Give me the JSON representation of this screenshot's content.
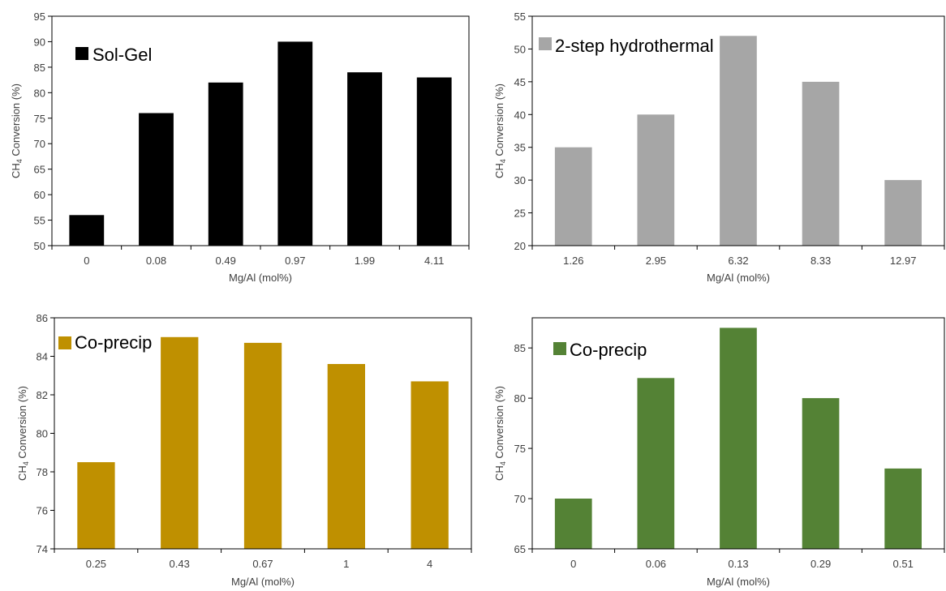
{
  "chart_data": [
    {
      "type": "bar",
      "legend": "Sol-Gel",
      "legend_position": "top-left",
      "color": "#000000",
      "categories": [
        "0",
        "0.08",
        "0.49",
        "0.97",
        "1.99",
        "4.11"
      ],
      "values": [
        56,
        76,
        82,
        90,
        84,
        83
      ],
      "xlabel": "Mg/Al (mol%)",
      "ylabel_main": "CH",
      "ylabel_sub": "4",
      "ylabel_rest": " Conversion (%)",
      "ylim": [
        50,
        95
      ],
      "yticks": [
        "50",
        "55",
        "60",
        "65",
        "70",
        "75",
        "80",
        "85",
        "90",
        "95"
      ],
      "grid": false
    },
    {
      "type": "bar",
      "legend": "2-step hydrothermal",
      "legend_position": "top-left",
      "color": "#a6a6a6",
      "categories": [
        "1.26",
        "2.95",
        "6.32",
        "8.33",
        "12.97"
      ],
      "values": [
        35,
        40,
        52,
        45,
        30
      ],
      "xlabel": "Mg/Al (mol%)",
      "ylabel_main": "CH",
      "ylabel_sub": "4",
      "ylabel_rest": " Conversion (%)",
      "ylim": [
        20,
        55
      ],
      "yticks": [
        "20",
        "25",
        "30",
        "35",
        "40",
        "45",
        "50",
        "55"
      ],
      "grid": false
    },
    {
      "type": "bar",
      "legend": "Co-precip",
      "legend_position": "top-left",
      "color": "#bf9000",
      "categories": [
        "0.25",
        "0.43",
        "0.67",
        "1",
        "4"
      ],
      "values": [
        78.5,
        85,
        84.7,
        83.6,
        82.7
      ],
      "xlabel": "Mg/Al (mol%)",
      "ylabel_main": "CH",
      "ylabel_sub": "4",
      "ylabel_rest": " Conversion (%)",
      "ylim": [
        74,
        86
      ],
      "yticks": [
        "74",
        "76",
        "78",
        "80",
        "82",
        "84",
        "86"
      ],
      "grid": false
    },
    {
      "type": "bar",
      "legend": "Co-precip",
      "legend_position": "top-left",
      "color": "#548235",
      "categories": [
        "0",
        "0.06",
        "0.13",
        "0.29",
        "0.51"
      ],
      "values": [
        70,
        82,
        87,
        80,
        73
      ],
      "xlabel": "Mg/Al (mol%)",
      "ylabel_main": "CH",
      "ylabel_sub": "4",
      "ylabel_rest": " Conversion (%)",
      "ylim": [
        65,
        88
      ],
      "yticks": [
        "65",
        "70",
        "75",
        "80",
        "85"
      ],
      "grid": false
    }
  ]
}
